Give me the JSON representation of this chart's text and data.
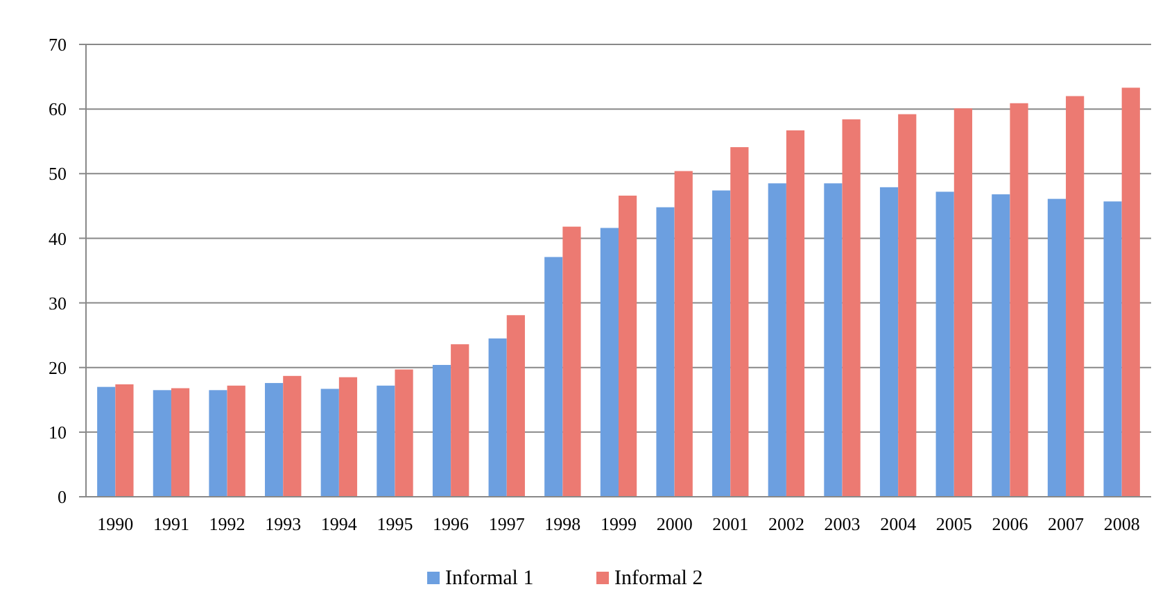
{
  "chart_data": {
    "type": "bar",
    "categories": [
      "1990",
      "1991",
      "1992",
      "1993",
      "1994",
      "1995",
      "1996",
      "1997",
      "1998",
      "1999",
      "2000",
      "2001",
      "2002",
      "2003",
      "2004",
      "2005",
      "2006",
      "2007",
      "2008"
    ],
    "series": [
      {
        "name": "Informal 1",
        "color": "#6c9fe0",
        "values": [
          17.0,
          16.5,
          16.5,
          17.6,
          16.7,
          17.2,
          20.4,
          24.5,
          37.1,
          41.6,
          44.8,
          47.4,
          48.5,
          48.5,
          47.9,
          47.2,
          46.8,
          46.1,
          45.7
        ]
      },
      {
        "name": "Informal 2",
        "color": "#ec7a72",
        "values": [
          17.4,
          16.8,
          17.2,
          18.7,
          18.5,
          19.7,
          23.6,
          28.1,
          41.8,
          46.6,
          50.4,
          54.1,
          56.7,
          58.4,
          59.2,
          60.1,
          60.9,
          62.0,
          63.3
        ]
      }
    ],
    "ylim": [
      0,
      70
    ],
    "yticks": [
      0,
      10,
      20,
      30,
      40,
      50,
      60,
      70
    ],
    "grid": "y",
    "legend": "bottom"
  }
}
